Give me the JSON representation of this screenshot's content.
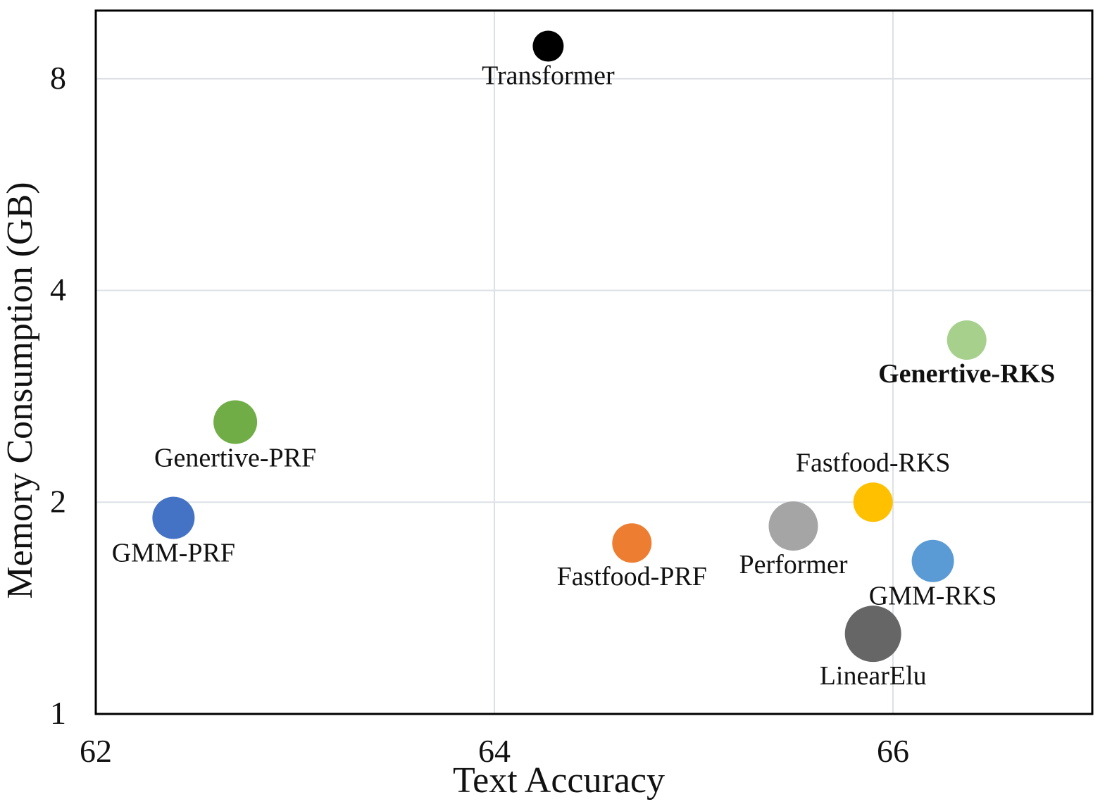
{
  "chart_data": {
    "type": "scatter",
    "title": "",
    "xlabel": "Text Accuracy",
    "ylabel": "Memory Consumption (GB)",
    "xlim": [
      62,
      67
    ],
    "ylim": [
      1,
      10
    ],
    "yscale": "log",
    "xticks": [
      62,
      64,
      66
    ],
    "xtick_labels": [
      "62",
      "64",
      "66"
    ],
    "yticks": [
      1,
      2,
      4,
      8
    ],
    "ytick_labels": [
      "1",
      "2",
      "4",
      "8"
    ],
    "grid": true,
    "points": [
      {
        "label": "Transformer",
        "x": 64.27,
        "y": 8.9,
        "color": "#000000",
        "bold": false,
        "label_pos": "below"
      },
      {
        "label": "Genertive-RKS",
        "x": 66.37,
        "y": 3.4,
        "color": "#a8d08d",
        "bold": true,
        "label_pos": "below"
      },
      {
        "label": "Genertive-PRF",
        "x": 62.7,
        "y": 2.6,
        "color": "#70ad47",
        "bold": false,
        "label_pos": "below"
      },
      {
        "label": "GMM-PRF",
        "x": 62.39,
        "y": 1.9,
        "color": "#4472c4",
        "bold": false,
        "label_pos": "below"
      },
      {
        "label": "Fastfood-PRF",
        "x": 64.69,
        "y": 1.75,
        "color": "#ed7d31",
        "bold": false,
        "label_pos": "below"
      },
      {
        "label": "Performer",
        "x": 65.5,
        "y": 1.85,
        "color": "#a5a5a5",
        "bold": false,
        "label_pos": "below"
      },
      {
        "label": "Fastfood-RKS",
        "x": 65.9,
        "y": 2.0,
        "color": "#ffc000",
        "bold": false,
        "label_pos": "above"
      },
      {
        "label": "GMM-RKS",
        "x": 66.2,
        "y": 1.65,
        "color": "#5b9bd5",
        "bold": false,
        "label_pos": "below"
      },
      {
        "label": "LinearElu",
        "x": 65.9,
        "y": 1.3,
        "color": "#666666",
        "bold": false,
        "label_pos": "below"
      }
    ]
  }
}
